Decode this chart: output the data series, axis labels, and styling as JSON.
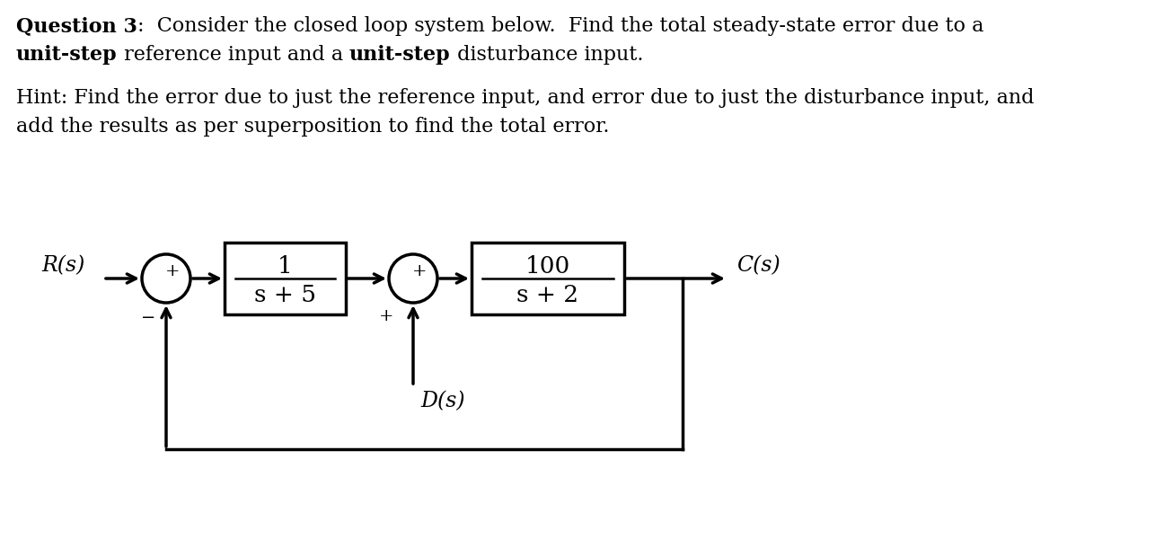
{
  "bg_color": "#ffffff",
  "text_color": "#000000",
  "line1_segments": [
    {
      "text": "Question 3",
      "bold": true
    },
    {
      "text": ":  Consider the closed loop system below.  Find the total steady-state error due to a",
      "bold": false
    }
  ],
  "line2_segments": [
    {
      "text": "unit-step",
      "bold": true
    },
    {
      "text": " reference input and a ",
      "bold": false
    },
    {
      "text": "unit-step",
      "bold": true
    },
    {
      "text": " disturbance input.",
      "bold": false
    }
  ],
  "hint_line1": "Hint: Find the error due to just the reference input, and error due to just the disturbance input, and",
  "hint_line2": "add the results as per superposition to find the total error.",
  "diagram": {
    "R_label": "R(s)",
    "C_label": "C(s)",
    "D_label": "D(s)",
    "block1_num": "1",
    "block1_den": "s + 5",
    "block2_num": "100",
    "block2_den": "s + 2"
  },
  "font_size": 16,
  "diagram_font_size": 17
}
